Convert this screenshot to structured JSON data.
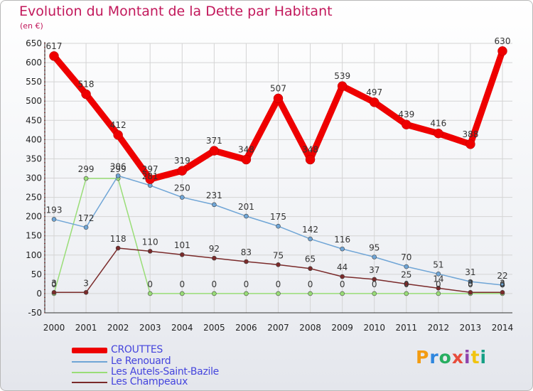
{
  "title": "Evolution du Montant de la Dette par Habitant",
  "unit": "(en €)",
  "logo": {
    "text": "Proxiti",
    "colors": [
      "#f39c12",
      "#2e86de",
      "#27ae60",
      "#e74c3c",
      "#8e44ad",
      "#f1c40f",
      "#16a085"
    ]
  },
  "chart_data": {
    "type": "line",
    "x": [
      "2000",
      "2001",
      "2002",
      "2003",
      "2004",
      "2005",
      "2006",
      "2007",
      "2008",
      "2009",
      "2010",
      "2011",
      "2012",
      "2013",
      "2014"
    ],
    "ylim": [
      -50,
      650
    ],
    "yticks": [
      -50,
      0,
      50,
      100,
      150,
      200,
      250,
      300,
      350,
      400,
      450,
      500,
      550,
      600,
      650
    ],
    "ytick_labels": [
      "-50",
      "0",
      "50",
      "100",
      "150",
      "200",
      "250",
      "300",
      "350",
      "400",
      "450",
      "500",
      "550",
      "600",
      "650"
    ],
    "grid": true,
    "legend_position": "bottom-left",
    "series": [
      {
        "name": "CROUTTES",
        "color": "#ee0000",
        "values": [
          617,
          518,
          412,
          297,
          319,
          371,
          348,
          507,
          348,
          539,
          497,
          439,
          416,
          388,
          630
        ],
        "labels": [
          "617",
          "518",
          "412",
          "297",
          "319",
          "371",
          "348",
          "507",
          "348",
          "539",
          "497",
          "439",
          "416",
          "388",
          "630"
        ]
      },
      {
        "name": "Le Renouard",
        "color": "#6fa5d6",
        "values": [
          193,
          172,
          306,
          281,
          250,
          231,
          201,
          175,
          142,
          116,
          95,
          70,
          51,
          31,
          22
        ],
        "labels": [
          "193",
          "172",
          "306",
          "281",
          "250",
          "231",
          "201",
          "175",
          "142",
          "116",
          "95",
          "70",
          "51",
          "31",
          "22"
        ]
      },
      {
        "name": "Les Autels-Saint-Bazile",
        "color": "#99dd77",
        "values": [
          0,
          299,
          299,
          0,
          0,
          0,
          0,
          0,
          0,
          0,
          0,
          0,
          0,
          0,
          0
        ],
        "labels": [
          "0",
          "299",
          "299",
          "0",
          "0",
          "0",
          "0",
          "0",
          "0",
          "0",
          "0",
          "0",
          "0",
          "0",
          "0"
        ]
      },
      {
        "name": "Les Champeaux",
        "color": "#7a2a2a",
        "values": [
          3,
          3,
          118,
          110,
          101,
          92,
          83,
          75,
          65,
          44,
          37,
          25,
          14,
          3,
          3
        ],
        "labels": [
          "3",
          "3",
          "118",
          "110",
          "101",
          "92",
          "83",
          "75",
          "65",
          "44",
          "37",
          "25",
          "14",
          "3",
          "3"
        ]
      }
    ]
  }
}
